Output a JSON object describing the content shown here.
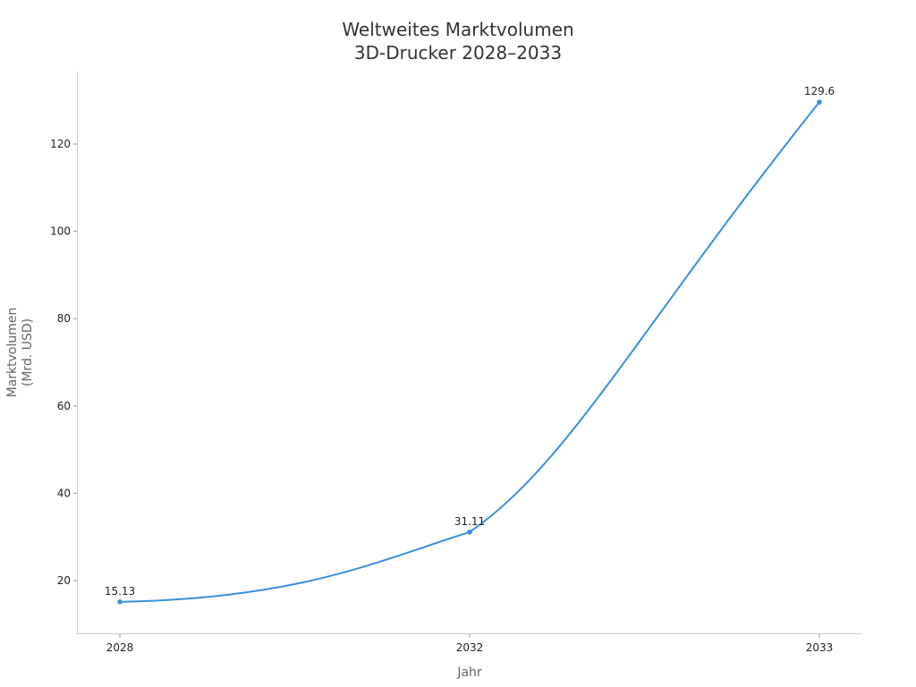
{
  "chart_data": {
    "type": "line",
    "title": "Weltweites Marktvolumen\n3D-Drucker 2028–2033",
    "title_lines": [
      "Weltweites Marktvolumen",
      "3D-Drucker 2028–2033"
    ],
    "xlabel": "Jahr",
    "ylabel": "Marktvolumen (Mrd. USD)",
    "ylabel_lines": [
      "Marktvolumen",
      "(Mrd. USD)"
    ],
    "categories": [
      "2028",
      "2032",
      "2033"
    ],
    "series": [
      {
        "name": "Marktvolumen",
        "values": [
          15.13,
          31.11,
          129.6
        ],
        "labels": [
          "15.13",
          "31.11",
          "129.6"
        ],
        "color": "#3a8fdd"
      }
    ],
    "yticks": [
      20,
      40,
      60,
      80,
      100,
      120
    ],
    "ytick_labels": [
      "20",
      "40",
      "60",
      "80",
      "100",
      "120"
    ],
    "ylim": [
      8.3,
      136
    ],
    "grid": false,
    "legend": "none",
    "smooth": true
  }
}
